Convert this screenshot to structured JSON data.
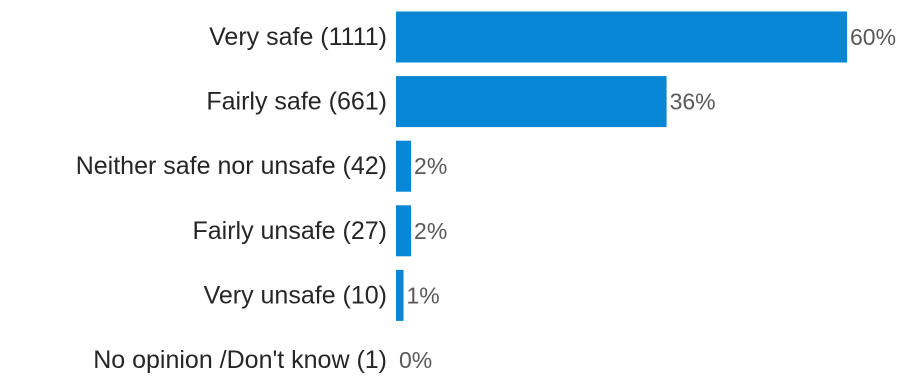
{
  "chart_data": {
    "type": "bar",
    "orientation": "horizontal",
    "categories": [
      "Very safe (1111)",
      "Fairly safe (661)",
      "Neither safe nor unsafe (42)",
      "Fairly unsafe (27)",
      "Very unsafe (10)",
      "No opinion /Don't know (1)"
    ],
    "values": [
      60,
      36,
      2,
      2,
      1,
      0
    ],
    "value_labels": [
      "60%",
      "36%",
      "2%",
      "2%",
      "1%",
      "0%"
    ],
    "title": "",
    "xlabel": "",
    "ylabel": "",
    "xlim": [
      0,
      60
    ],
    "grid": false,
    "legend": "none",
    "bar_color": "#0787D5"
  }
}
